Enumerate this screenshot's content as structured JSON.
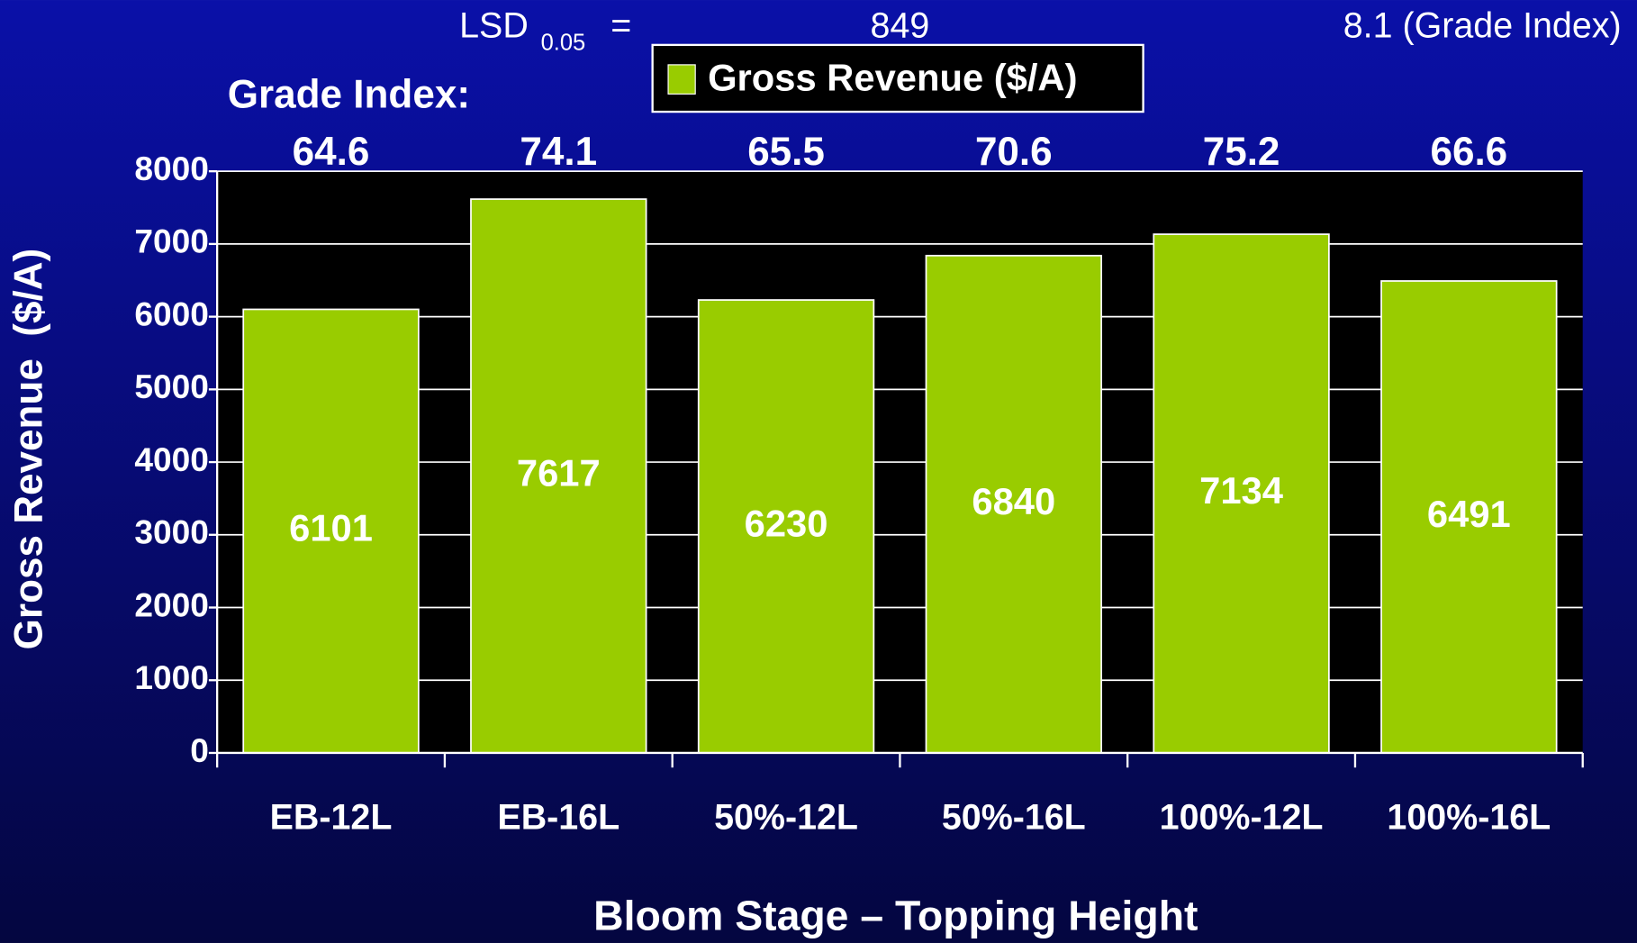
{
  "chart_data": {
    "type": "bar",
    "annotations": {
      "lsd_label": "LSD",
      "lsd_subscript": "0.05",
      "lsd_equals": "=",
      "lsd_revenue": 849,
      "lsd_grade": "8.1 (Grade Index)"
    },
    "grade_index": {
      "label": "Grade Index:",
      "values": [
        64.6,
        74.1,
        65.5,
        70.6,
        75.2,
        66.6
      ]
    },
    "series": [
      {
        "name": "Gross Revenue ($/A)",
        "color": "#99cc00",
        "values": [
          6101,
          7617,
          6230,
          6840,
          7134,
          6491
        ]
      }
    ],
    "categories": [
      "EB-12L",
      "EB-16L",
      "50%-12L",
      "50%-16L",
      "100%-12L",
      "100%-16L"
    ],
    "x_label": "Bloom Stage – Topping Height",
    "y_label": "Gross Revenue  ($/A)",
    "ylim": [
      0,
      8000
    ],
    "yticks": [
      0,
      1000,
      2000,
      3000,
      4000,
      5000,
      6000,
      7000,
      8000
    ],
    "grid": true,
    "plot_background": "#000000"
  }
}
